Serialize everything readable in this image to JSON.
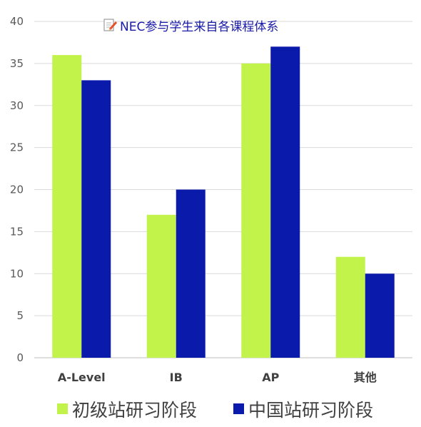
{
  "chart_data": {
    "type": "bar",
    "title": "NEC参与学生来自各课程体系",
    "title_icon": "memo-pencil-icon",
    "categories": [
      "A-Level",
      "IB",
      "AP",
      "其他"
    ],
    "series": [
      {
        "name": "初级站研习阶段",
        "color": "#c2f34a",
        "values": [
          36,
          17,
          35,
          12
        ]
      },
      {
        "name": "中国站研习阶段",
        "color": "#0a1aab",
        "values": [
          33,
          20,
          37,
          10
        ]
      }
    ],
    "yticks": [
      0,
      5,
      10,
      15,
      20,
      25,
      30,
      35,
      40
    ],
    "ylim": [
      0,
      40
    ],
    "grid": true,
    "legend_position": "bottom",
    "xlabel": "",
    "ylabel": ""
  }
}
